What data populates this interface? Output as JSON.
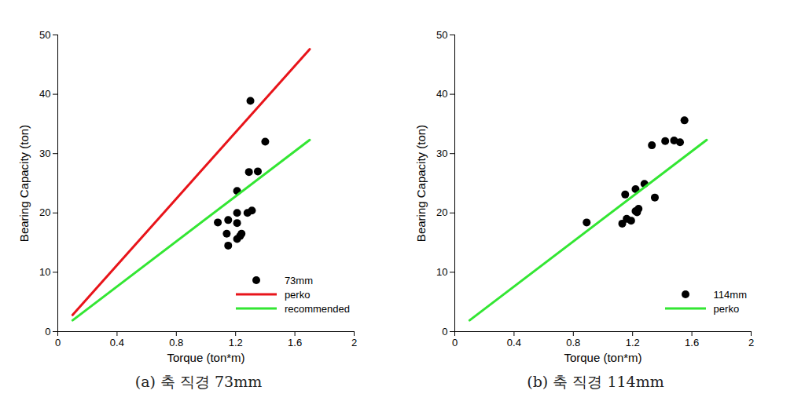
{
  "chart_data": [
    {
      "type": "scatter",
      "title": "(a) 축 직경 73mm",
      "x_label": "Torque (ton*m)",
      "y_label": "Bearing Capacity (ton)",
      "xlim": [
        0,
        2
      ],
      "xticks": [
        0,
        0.4,
        0.8,
        1.2,
        1.6,
        2
      ],
      "ylim": [
        0,
        50
      ],
      "yticks": [
        0,
        10,
        20,
        30,
        40,
        50
      ],
      "legend": "lower right",
      "series": [
        {
          "name": "73mm",
          "type": "scatter",
          "marker": "circle",
          "color": "#000000",
          "x": [
            1.3,
            1.4,
            1.35,
            1.29,
            1.21,
            1.31,
            1.28,
            1.21,
            1.08,
            1.15,
            1.21,
            1.14,
            1.24,
            1.23,
            1.21,
            1.15
          ],
          "values": [
            38.9,
            32.0,
            27.0,
            26.9,
            23.7,
            20.4,
            20.0,
            20.0,
            18.4,
            18.8,
            18.3,
            16.5,
            16.5,
            16.1,
            15.6,
            14.5
          ]
        },
        {
          "name": "perko",
          "type": "line",
          "line_style": "solid",
          "color": "#e8141a",
          "x": [
            0.1,
            1.7
          ],
          "values": [
            2.8,
            47.6
          ]
        },
        {
          "name": "recommended",
          "type": "line",
          "line_style": "solid",
          "color": "#33e633",
          "x": [
            0.1,
            1.7
          ],
          "values": [
            1.9,
            32.3
          ]
        }
      ]
    },
    {
      "type": "scatter",
      "title": "(b) 축 직경 114mm",
      "x_label": "Torque (ton*m)",
      "y_label": "Bearing Capacity (ton)",
      "xlim": [
        0,
        2
      ],
      "xticks": [
        0,
        0.4,
        0.8,
        1.2,
        1.6,
        2
      ],
      "ylim": [
        0,
        50
      ],
      "yticks": [
        0,
        10,
        20,
        30,
        40,
        50
      ],
      "legend": "lower right",
      "series": [
        {
          "name": "114mm",
          "type": "scatter",
          "marker": "circle",
          "color": "#000000",
          "x": [
            1.55,
            1.42,
            1.48,
            1.52,
            1.33,
            1.28,
            1.22,
            1.15,
            1.35,
            1.24,
            1.22,
            1.23,
            1.16,
            1.19,
            1.13,
            0.89
          ],
          "values": [
            35.6,
            32.1,
            32.2,
            31.9,
            31.4,
            24.9,
            24.0,
            23.1,
            22.6,
            20.7,
            20.3,
            20.1,
            19.0,
            18.7,
            18.2,
            18.4
          ]
        },
        {
          "name": "perko",
          "type": "line",
          "line_style": "solid",
          "color": "#33e633",
          "x": [
            0.1,
            1.7
          ],
          "values": [
            1.9,
            32.3
          ]
        }
      ]
    }
  ]
}
